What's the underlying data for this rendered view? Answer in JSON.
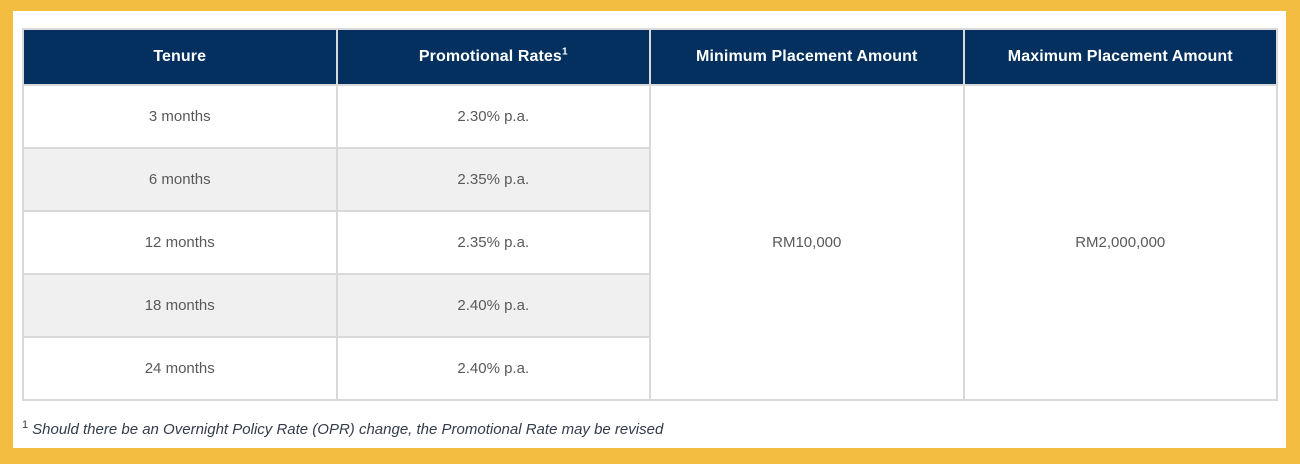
{
  "theme": {
    "frame_color": "#F2BD41",
    "header_bg": "#03305F",
    "header_text": "#FFFFFF",
    "stripe_row_bg": "#F0F0F0",
    "cell_border": "#D9D9D9",
    "body_text": "#58595B",
    "footnote_text": "#333C4A"
  },
  "table": {
    "columns": [
      "Tenure",
      "Promotional Rates",
      "Minimum Placement Amount",
      "Maximum Placement Amount"
    ],
    "promo_superscript": "1",
    "rows": [
      {
        "tenure": "3 months",
        "rate": "2.30% p.a."
      },
      {
        "tenure": "6 months",
        "rate": "2.35% p.a."
      },
      {
        "tenure": "12 months",
        "rate": "2.35% p.a."
      },
      {
        "tenure": "18 months",
        "rate": "2.40% p.a."
      },
      {
        "tenure": "24 months",
        "rate": "2.40% p.a."
      }
    ],
    "minimum_placement": "RM10,000",
    "maximum_placement": "RM2,000,000"
  },
  "footnote": {
    "sup": "1",
    "text": "Should there be an Overnight Policy Rate (OPR) change, the Promotional Rate may be revised"
  }
}
